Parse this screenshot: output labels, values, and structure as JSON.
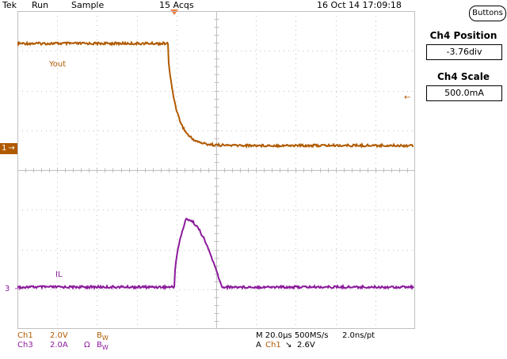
{
  "status_bar": {
    "brand": "Tek",
    "run_state": "Run",
    "acq_mode": "Sample",
    "acq_count": "15 Acqs",
    "datetime": "16 Oct 14 17:09:18"
  },
  "right_panel": {
    "buttons_label": "Buttons",
    "position_title": "Ch4 Position",
    "position_value": "-3.76div",
    "scale_title": "Ch4 Scale",
    "scale_value": "500.0mA"
  },
  "channel_markers": {
    "ch1": "1",
    "ch3": "3"
  },
  "trace_labels": {
    "vout": "Yout",
    "il": "IL"
  },
  "bottom_bar": {
    "ch1_name": "Ch1",
    "ch1_scale": "2.0V",
    "ch1_bw": "B",
    "ch1_bw_sub": "W",
    "ch3_name": "Ch3",
    "ch3_scale": "2.0A",
    "ch3_ohm": "Ω",
    "ch3_bw": "B",
    "ch3_bw_sub": "W",
    "timebase": "M 20.0µs 500MS/s",
    "sample_interval": "2.0ns/pt",
    "trigger_label": "A",
    "trigger_source": "Ch1",
    "trigger_slope": "↘",
    "trigger_level": "2.6V"
  },
  "colors": {
    "ch1": "#b05a00",
    "ch3": "#8b1a9b",
    "grid": "#c0c0c0",
    "trigger_marker": "#f07a3c"
  }
}
